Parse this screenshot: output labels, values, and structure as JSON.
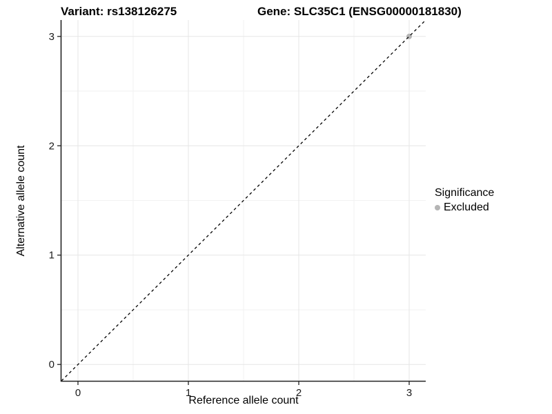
{
  "titles": {
    "variant": "Variant: rs138126275",
    "gene": "Gene: SLC35C1 (ENSG00000181830)"
  },
  "chart_data": {
    "type": "scatter",
    "xlabel": "Reference allele count",
    "ylabel": "Alternative allele count",
    "xlim": [
      -0.15,
      3.15
    ],
    "ylim": [
      -0.15,
      3.15
    ],
    "x_ticks": [
      0,
      1,
      2,
      3
    ],
    "y_ticks": [
      0,
      1,
      2,
      3
    ],
    "x_minor_ticks": [
      0.5,
      1.5,
      2.5
    ],
    "y_minor_ticks": [
      0.5,
      1.5,
      2.5
    ],
    "grid": "on",
    "reference_line": {
      "kind": "identity",
      "from": [
        -0.15,
        -0.15
      ],
      "to": [
        3.15,
        3.15
      ],
      "style": "dashed",
      "color": "#000000"
    },
    "series": [
      {
        "name": "Excluded",
        "color": "#b5b5b5",
        "points": [
          [
            3,
            3
          ]
        ]
      }
    ],
    "legend": {
      "title": "Significance",
      "position": "right",
      "entries": [
        {
          "label": "Excluded",
          "color": "#b5b5b5"
        }
      ]
    }
  },
  "colors": {
    "grid_major": "#e6e6e6",
    "grid_minor": "#f2f2f2",
    "axis_line": "#222222",
    "tick_mark": "#222222",
    "tick_label": "#1a1a1a",
    "point_excluded": "#b5b5b5",
    "title_text": "#000000"
  }
}
